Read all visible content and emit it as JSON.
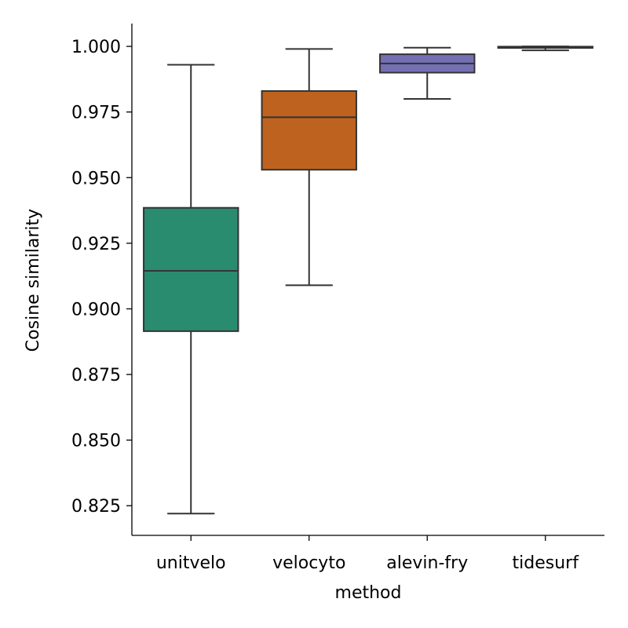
{
  "chart_data": {
    "type": "boxplot",
    "title": "",
    "xlabel": "method",
    "ylabel": "Cosine similarity",
    "ylim": [
      0.8137,
      1.0087
    ],
    "yticks": [
      "0.825",
      "0.850",
      "0.875",
      "0.900",
      "0.925",
      "0.950",
      "0.975",
      "1.000"
    ],
    "ytick_values": [
      0.825,
      0.85,
      0.875,
      0.9,
      0.925,
      0.95,
      0.975,
      1.0
    ],
    "grid": false,
    "legend": "none",
    "categories": [
      "unitvelo",
      "velocyto",
      "alevin-fry",
      "tidesurf"
    ],
    "boxes": [
      {
        "category": "unitvelo",
        "whisker_low": 0.822,
        "q1": 0.8915,
        "median": 0.9145,
        "q3": 0.9385,
        "whisker_high": 0.993,
        "color": "#2a8c6e"
      },
      {
        "category": "velocyto",
        "whisker_low": 0.909,
        "q1": 0.953,
        "median": 0.973,
        "q3": 0.983,
        "whisker_high": 0.999,
        "color": "#be631f"
      },
      {
        "category": "alevin-fry",
        "whisker_low": 0.98,
        "q1": 0.99,
        "median": 0.9935,
        "q3": 0.997,
        "whisker_high": 0.9995,
        "color": "#7570b3"
      },
      {
        "category": "tidesurf",
        "whisker_low": 0.9985,
        "q1": 0.9994,
        "median": 0.9997,
        "q3": 0.9999,
        "whisker_high": 1.0,
        "color": "#e7298a"
      }
    ]
  }
}
